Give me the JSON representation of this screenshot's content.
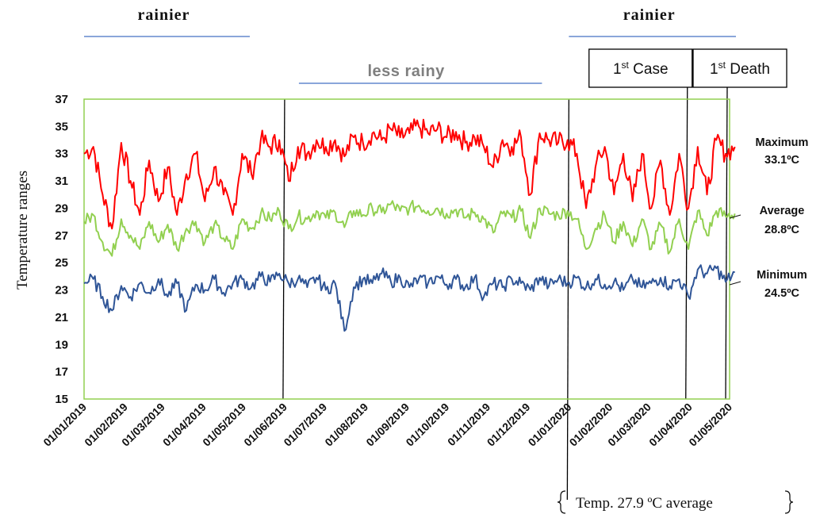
{
  "chart_data": {
    "type": "line",
    "ylabel": "Temperature ranges",
    "ylim": [
      15,
      37
    ],
    "yticks": [
      15,
      17,
      19,
      21,
      23,
      25,
      27,
      29,
      31,
      33,
      35,
      37
    ],
    "x_start": "01/01/2019",
    "x_end": "01/05/2020",
    "xticks": [
      "01/01/2019",
      "01/02/2019",
      "01/03/2019",
      "01/04/2019",
      "01/05/2019",
      "01/06/2019",
      "01/07/2019",
      "01/08/2019",
      "01/09/2019",
      "01/10/2019",
      "01/11/2019",
      "01/12/2019",
      "01/01/2020",
      "01/02/2020",
      "01/03/2020",
      "01/04/2020",
      "01/05/2020"
    ],
    "grid": false,
    "plot_border_color": "#92d050",
    "series": [
      {
        "key": "max",
        "color": "#ff0000",
        "points": [
          [
            "01/01/2019",
            33.0
          ],
          [
            "08/01/2019",
            33.5
          ],
          [
            "15/01/2019",
            30.0
          ],
          [
            "22/01/2019",
            27.5
          ],
          [
            "29/01/2019",
            33.8
          ],
          [
            "05/02/2019",
            31.0
          ],
          [
            "12/02/2019",
            28.5
          ],
          [
            "19/02/2019",
            32.5
          ],
          [
            "26/02/2019",
            29.5
          ],
          [
            "05/03/2019",
            32.0
          ],
          [
            "12/03/2019",
            28.5
          ],
          [
            "19/03/2019",
            31.5
          ],
          [
            "26/03/2019",
            33.0
          ],
          [
            "02/04/2019",
            29.5
          ],
          [
            "09/04/2019",
            32.0
          ],
          [
            "16/04/2019",
            30.0
          ],
          [
            "23/04/2019",
            28.5
          ],
          [
            "30/04/2019",
            33.0
          ],
          [
            "07/05/2019",
            31.5
          ],
          [
            "14/05/2019",
            34.0
          ],
          [
            "21/05/2019",
            33.5
          ],
          [
            "28/05/2019",
            34.0
          ],
          [
            "04/06/2019",
            31.0
          ],
          [
            "11/06/2019",
            33.5
          ],
          [
            "18/06/2019",
            33.0
          ],
          [
            "25/06/2019",
            34.0
          ],
          [
            "02/07/2019",
            33.5
          ],
          [
            "09/07/2019",
            34.0
          ],
          [
            "16/07/2019",
            32.8
          ],
          [
            "23/07/2019",
            34.2
          ],
          [
            "30/07/2019",
            33.8
          ],
          [
            "06/08/2019",
            34.5
          ],
          [
            "13/08/2019",
            34.0
          ],
          [
            "20/08/2019",
            34.8
          ],
          [
            "27/08/2019",
            34.2
          ],
          [
            "03/09/2019",
            34.5
          ],
          [
            "10/09/2019",
            35.0
          ],
          [
            "17/09/2019",
            34.5
          ],
          [
            "24/09/2019",
            34.8
          ],
          [
            "01/10/2019",
            34.2
          ],
          [
            "08/10/2019",
            34.6
          ],
          [
            "15/10/2019",
            33.8
          ],
          [
            "22/10/2019",
            34.2
          ],
          [
            "29/10/2019",
            33.5
          ],
          [
            "05/11/2019",
            32.0
          ],
          [
            "12/11/2019",
            34.0
          ],
          [
            "19/11/2019",
            33.5
          ],
          [
            "26/11/2019",
            34.2
          ],
          [
            "03/12/2019",
            30.0
          ],
          [
            "10/12/2019",
            34.5
          ],
          [
            "17/12/2019",
            34.0
          ],
          [
            "24/12/2019",
            33.8
          ],
          [
            "31/12/2019",
            34.0
          ],
          [
            "07/01/2020",
            33.0
          ],
          [
            "14/01/2020",
            29.0
          ],
          [
            "21/01/2020",
            32.0
          ],
          [
            "28/01/2020",
            33.5
          ],
          [
            "04/02/2020",
            30.0
          ],
          [
            "11/02/2020",
            33.0
          ],
          [
            "18/02/2020",
            29.5
          ],
          [
            "25/02/2020",
            33.0
          ],
          [
            "03/03/2020",
            29.0
          ],
          [
            "10/03/2020",
            32.5
          ],
          [
            "17/03/2020",
            28.5
          ],
          [
            "24/03/2020",
            33.0
          ],
          [
            "31/03/2020",
            29.0
          ],
          [
            "07/04/2020",
            33.5
          ],
          [
            "14/04/2020",
            30.0
          ],
          [
            "21/04/2020",
            34.0
          ],
          [
            "28/04/2020",
            33.0
          ],
          [
            "05/05/2020",
            33.5
          ]
        ]
      },
      {
        "key": "avg",
        "color": "#92d050",
        "points": [
          [
            "01/01/2019",
            28.0
          ],
          [
            "08/01/2019",
            28.5
          ],
          [
            "15/01/2019",
            26.5
          ],
          [
            "22/01/2019",
            25.5
          ],
          [
            "29/01/2019",
            28.2
          ],
          [
            "05/02/2019",
            27.0
          ],
          [
            "12/02/2019",
            26.0
          ],
          [
            "19/02/2019",
            28.0
          ],
          [
            "26/02/2019",
            26.5
          ],
          [
            "05/03/2019",
            27.8
          ],
          [
            "12/03/2019",
            26.0
          ],
          [
            "19/03/2019",
            27.5
          ],
          [
            "26/03/2019",
            28.0
          ],
          [
            "02/04/2019",
            26.5
          ],
          [
            "09/04/2019",
            27.8
          ],
          [
            "16/04/2019",
            26.8
          ],
          [
            "23/04/2019",
            26.0
          ],
          [
            "30/04/2019",
            28.2
          ],
          [
            "07/05/2019",
            27.5
          ],
          [
            "14/05/2019",
            28.6
          ],
          [
            "21/05/2019",
            28.2
          ],
          [
            "28/05/2019",
            28.8
          ],
          [
            "04/06/2019",
            27.5
          ],
          [
            "11/06/2019",
            28.4
          ],
          [
            "18/06/2019",
            28.2
          ],
          [
            "25/06/2019",
            28.8
          ],
          [
            "02/07/2019",
            28.3
          ],
          [
            "09/07/2019",
            28.7
          ],
          [
            "16/07/2019",
            27.6
          ],
          [
            "23/07/2019",
            28.8
          ],
          [
            "30/07/2019",
            28.5
          ],
          [
            "06/08/2019",
            29.0
          ],
          [
            "13/08/2019",
            28.7
          ],
          [
            "20/08/2019",
            29.3
          ],
          [
            "27/08/2019",
            28.8
          ],
          [
            "03/09/2019",
            29.0
          ],
          [
            "10/09/2019",
            29.2
          ],
          [
            "17/09/2019",
            28.8
          ],
          [
            "24/09/2019",
            29.0
          ],
          [
            "01/10/2019",
            28.6
          ],
          [
            "08/10/2019",
            28.9
          ],
          [
            "15/10/2019",
            28.3
          ],
          [
            "22/10/2019",
            28.7
          ],
          [
            "29/10/2019",
            28.2
          ],
          [
            "05/11/2019",
            27.2
          ],
          [
            "12/11/2019",
            28.6
          ],
          [
            "19/11/2019",
            28.3
          ],
          [
            "26/11/2019",
            28.8
          ],
          [
            "03/12/2019",
            26.8
          ],
          [
            "10/12/2019",
            29.0
          ],
          [
            "17/12/2019",
            28.6
          ],
          [
            "24/12/2019",
            28.5
          ],
          [
            "31/12/2019",
            28.8
          ],
          [
            "07/01/2020",
            28.2
          ],
          [
            "14/01/2020",
            26.0
          ],
          [
            "21/01/2020",
            27.5
          ],
          [
            "28/01/2020",
            28.5
          ],
          [
            "04/02/2020",
            26.5
          ],
          [
            "11/02/2020",
            28.0
          ],
          [
            "18/02/2020",
            26.2
          ],
          [
            "25/02/2020",
            28.2
          ],
          [
            "03/03/2020",
            26.0
          ],
          [
            "10/03/2020",
            27.8
          ],
          [
            "17/03/2020",
            25.8
          ],
          [
            "24/03/2020",
            28.2
          ],
          [
            "31/03/2020",
            26.0
          ],
          [
            "07/04/2020",
            28.8
          ],
          [
            "14/04/2020",
            27.0
          ],
          [
            "21/04/2020",
            28.8
          ],
          [
            "28/04/2020",
            28.4
          ],
          [
            "05/05/2020",
            28.6
          ]
        ]
      },
      {
        "key": "min",
        "color": "#2f5597",
        "points": [
          [
            "01/01/2019",
            23.5
          ],
          [
            "08/01/2019",
            23.8
          ],
          [
            "15/01/2019",
            22.5
          ],
          [
            "22/01/2019",
            21.5
          ],
          [
            "29/01/2019",
            23.3
          ],
          [
            "05/02/2019",
            22.5
          ],
          [
            "12/02/2019",
            23.5
          ],
          [
            "19/02/2019",
            22.8
          ],
          [
            "26/02/2019",
            23.8
          ],
          [
            "05/03/2019",
            22.5
          ],
          [
            "12/03/2019",
            23.5
          ],
          [
            "19/03/2019",
            21.5
          ],
          [
            "26/03/2019",
            23.4
          ],
          [
            "02/04/2019",
            23.0
          ],
          [
            "09/04/2019",
            23.8
          ],
          [
            "16/04/2019",
            22.8
          ],
          [
            "23/04/2019",
            23.5
          ],
          [
            "30/04/2019",
            23.8
          ],
          [
            "07/05/2019",
            23.2
          ],
          [
            "14/05/2019",
            24.0
          ],
          [
            "21/05/2019",
            23.6
          ],
          [
            "28/05/2019",
            24.2
          ],
          [
            "04/06/2019",
            23.5
          ],
          [
            "11/06/2019",
            23.8
          ],
          [
            "18/06/2019",
            23.2
          ],
          [
            "25/06/2019",
            23.9
          ],
          [
            "02/07/2019",
            23.0
          ],
          [
            "09/07/2019",
            23.5
          ],
          [
            "16/07/2019",
            20.0
          ],
          [
            "23/07/2019",
            23.2
          ],
          [
            "30/07/2019",
            23.8
          ],
          [
            "06/08/2019",
            23.5
          ],
          [
            "13/08/2019",
            24.2
          ],
          [
            "20/08/2019",
            23.6
          ],
          [
            "27/08/2019",
            23.9
          ],
          [
            "03/09/2019",
            23.2
          ],
          [
            "10/09/2019",
            23.8
          ],
          [
            "17/09/2019",
            23.5
          ],
          [
            "24/09/2019",
            24.0
          ],
          [
            "01/10/2019",
            23.4
          ],
          [
            "08/10/2019",
            23.8
          ],
          [
            "15/10/2019",
            23.2
          ],
          [
            "22/10/2019",
            23.9
          ],
          [
            "29/10/2019",
            22.5
          ],
          [
            "05/11/2019",
            23.5
          ],
          [
            "12/11/2019",
            23.2
          ],
          [
            "19/11/2019",
            23.8
          ],
          [
            "26/11/2019",
            23.5
          ],
          [
            "03/12/2019",
            23.0
          ],
          [
            "10/12/2019",
            23.9
          ],
          [
            "17/12/2019",
            23.3
          ],
          [
            "24/12/2019",
            23.8
          ],
          [
            "31/12/2019",
            23.5
          ],
          [
            "07/01/2020",
            23.9
          ],
          [
            "14/01/2020",
            23.2
          ],
          [
            "21/01/2020",
            23.8
          ],
          [
            "28/01/2020",
            23.4
          ],
          [
            "04/02/2020",
            23.6
          ],
          [
            "11/02/2020",
            23.0
          ],
          [
            "18/02/2020",
            23.8
          ],
          [
            "25/02/2020",
            23.2
          ],
          [
            "03/03/2020",
            23.5
          ],
          [
            "10/03/2020",
            23.9
          ],
          [
            "17/03/2020",
            23.3
          ],
          [
            "24/03/2020",
            23.8
          ],
          [
            "31/03/2020",
            22.5
          ],
          [
            "07/04/2020",
            24.5
          ],
          [
            "14/04/2020",
            24.2
          ],
          [
            "21/04/2020",
            24.6
          ],
          [
            "28/04/2020",
            23.6
          ],
          [
            "05/05/2020",
            24.3
          ]
        ]
      }
    ],
    "series_labels": [
      {
        "key": "max",
        "name": "Maximum",
        "value": "33.1ºC"
      },
      {
        "key": "avg",
        "name": "Average",
        "value": "28.8ºC"
      },
      {
        "key": "min",
        "name": "Minimum",
        "value": "24.5ºC"
      }
    ],
    "seasons": [
      {
        "label": "rainier",
        "from": "01/01/2019",
        "to": "01/05/2019",
        "style": "dark"
      },
      {
        "label": "less rainy",
        "from": "01/06/2019",
        "to": "01/12/2019",
        "style": "gray"
      },
      {
        "label": "rainier",
        "from": "01/01/2020",
        "to": "01/05/2020",
        "style": "dark"
      }
    ],
    "markers": [
      {
        "date": "01/06/2019"
      },
      {
        "date": "01/01/2020"
      },
      {
        "date": "01/04/2020",
        "label_main": "1",
        "label_sup": "st",
        "label_rest": " Case"
      },
      {
        "date": "01/05/2020",
        "label_main": "1",
        "label_sup": "st",
        "label_rest": " Death"
      }
    ],
    "note": "Temp. 27.9 ºC average"
  }
}
